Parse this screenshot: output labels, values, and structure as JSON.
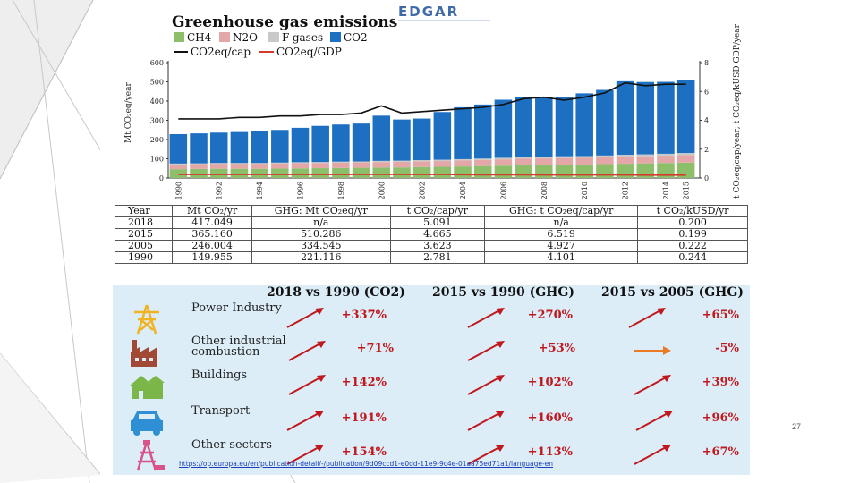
{
  "chart_data": {
    "type": "bar",
    "title": "Greenhouse gas emissions",
    "legend_row1": [
      "CH4",
      "N2O",
      "F-gases",
      "CO2"
    ],
    "legend_row2": [
      "CO2eq/cap",
      "CO2eq/GDP"
    ],
    "ylabel_left": "Mt CO₂eq/year",
    "ylabel_right": "t CO₂eq/cap/year; t CO₂eq/kUSD GDP/year",
    "y_left_ticks": [
      "0",
      "100",
      "200",
      "300",
      "400",
      "500",
      "600"
    ],
    "y_right_ticks": [
      "0",
      "2",
      "4",
      "6",
      "8"
    ],
    "ylim_left": [
      0,
      600
    ],
    "ylim_right": [
      0,
      8
    ],
    "x_tick_labels": [
      "1990",
      "1992",
      "1994",
      "1996",
      "1998",
      "2000",
      "2002",
      "2004",
      "2006",
      "2008",
      "2010",
      "2012",
      "2014",
      "2015"
    ],
    "years": [
      1990,
      1991,
      1992,
      1993,
      1994,
      1995,
      1996,
      1997,
      1998,
      1999,
      2000,
      2001,
      2002,
      2003,
      2004,
      2005,
      2006,
      2007,
      2008,
      2009,
      2010,
      2011,
      2012,
      2013,
      2014,
      2015
    ],
    "series": [
      {
        "name": "CH4",
        "values": [
          46,
          47,
          48,
          48,
          48,
          49,
          50,
          51,
          52,
          53,
          54,
          55,
          57,
          58,
          60,
          62,
          64,
          66,
          68,
          69,
          70,
          72,
          74,
          76,
          78,
          80
        ]
      },
      {
        "name": "N2O",
        "values": [
          25,
          25,
          26,
          26,
          26,
          27,
          27,
          27,
          28,
          28,
          29,
          29,
          30,
          30,
          31,
          32,
          33,
          34,
          34,
          35,
          35,
          36,
          37,
          37,
          38,
          39
        ]
      },
      {
        "name": "F-gases",
        "values": [
          4,
          4,
          4,
          4,
          4,
          4,
          5,
          5,
          5,
          5,
          6,
          6,
          6,
          7,
          7,
          7,
          8,
          8,
          8,
          9,
          9,
          9,
          10,
          10,
          10,
          11
        ]
      },
      {
        "name": "CO2",
        "values": [
          153,
          156,
          158,
          161,
          167,
          170,
          179,
          188,
          193,
          197,
          235,
          214,
          216,
          248,
          270,
          281,
          302,
          313,
          308,
          310,
          326,
          341,
          382,
          376,
          374,
          380
        ]
      }
    ],
    "line_series": [
      {
        "name": "CO2eq/cap",
        "axis": "right",
        "values": [
          4.1,
          4.1,
          4.1,
          4.2,
          4.2,
          4.3,
          4.3,
          4.4,
          4.4,
          4.5,
          5.0,
          4.5,
          4.6,
          4.7,
          4.8,
          4.9,
          5.1,
          5.5,
          5.6,
          5.4,
          5.6,
          5.9,
          6.6,
          6.4,
          6.5,
          6.5
        ]
      },
      {
        "name": "CO2eq/GDP",
        "axis": "right",
        "values": [
          0.24,
          0.24,
          0.24,
          0.24,
          0.24,
          0.24,
          0.24,
          0.24,
          0.24,
          0.24,
          0.25,
          0.24,
          0.24,
          0.24,
          0.23,
          0.22,
          0.22,
          0.22,
          0.21,
          0.21,
          0.21,
          0.21,
          0.21,
          0.2,
          0.2,
          0.2
        ]
      }
    ]
  },
  "logo": {
    "text": "EDGAR"
  },
  "table": {
    "headers": [
      "Year",
      "Mt CO₂/yr",
      "GHG: Mt CO₂eq/yr",
      "t CO₂/cap/yr",
      "GHG: t CO₂eq/cap/yr",
      "t CO₂/kUSD/yr"
    ],
    "rows": [
      [
        "2018",
        "417.049",
        "n/a",
        "5.091",
        "n/a",
        "0.200"
      ],
      [
        "2015",
        "365.160",
        "510.286",
        "4.665",
        "6.519",
        "0.199"
      ],
      [
        "2005",
        "246.004",
        "334.545",
        "3.623",
        "4.927",
        "0.222"
      ],
      [
        "1990",
        "149.955",
        "221.116",
        "2.781",
        "4.101",
        "0.244"
      ]
    ]
  },
  "sectors": {
    "headers": [
      "2018 vs 1990 (CO2)",
      "2015 vs 1990 (GHG)",
      "2015 vs 2005 (GHG)"
    ],
    "rows": [
      {
        "label": "Power Industry",
        "icon": "power-tower-icon",
        "values": [
          "+337%",
          "+270%",
          "+65%"
        ]
      },
      {
        "label": "Other industrial combustion",
        "icon": "factory-icon",
        "values": [
          "+71%",
          "+53%",
          "-5%"
        ]
      },
      {
        "label": "Buildings",
        "icon": "house-icon",
        "values": [
          "+142%",
          "+102%",
          "+39%"
        ]
      },
      {
        "label": "Transport",
        "icon": "car-icon",
        "values": [
          "+191%",
          "+160%",
          "+96%"
        ]
      },
      {
        "label": "Other sectors",
        "icon": "oil-rig-icon",
        "values": [
          "+154%",
          "+113%",
          "+67%"
        ]
      }
    ],
    "up_color": "#c0181c",
    "flat_color": "#ea7a24"
  },
  "source_url": "https://op.europa.eu/en/publication-detail/-/publication/9d09ccd1-e0dd-11e9-9c4e-01aa75ed71a1/language-en",
  "page_number": "27"
}
